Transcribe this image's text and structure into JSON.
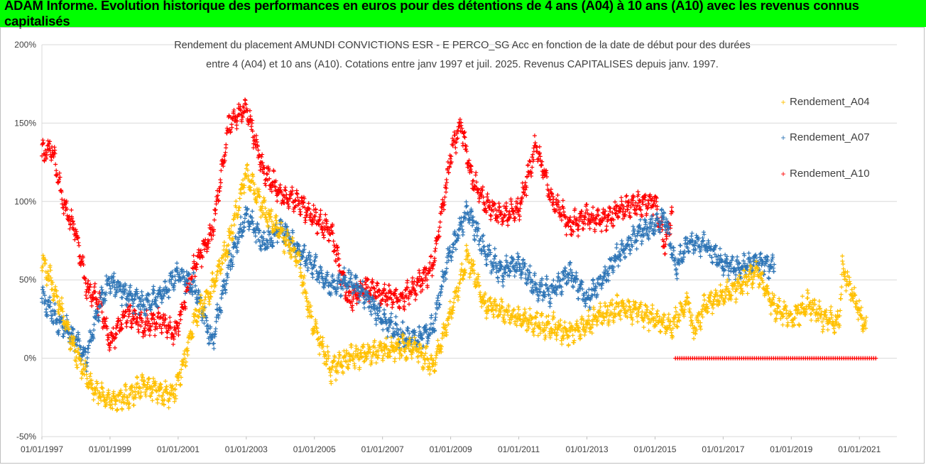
{
  "banner": {
    "title": "ADAM Informe. Evolution historique des performances en euros pour des détentions de 4 ans (A04) à 10 ans (A10) avec les revenus connus capitalisés"
  },
  "chart_data": {
    "type": "scatter",
    "title_lines": [
      "Rendement du placement AMUNDI CONVICTIONS ESR - E PERCO_SG Acc en fonction de la date de début pour des durées",
      "entre 4 (A04) et 10 ans (A10). Cotations entre janv 1997 et juil. 2025. Revenus CAPITALISES depuis janv. 1997."
    ],
    "xlabel": "",
    "ylabel": "",
    "y_ticks": [
      "200%",
      "150%",
      "100%",
      "50%",
      "0%",
      "-50%"
    ],
    "y_tick_values": [
      200,
      150,
      100,
      50,
      0,
      -50
    ],
    "ylim": [
      -50,
      200
    ],
    "x_ticks": [
      "01/01/1997",
      "01/01/1999",
      "01/01/2001",
      "01/01/2003",
      "01/01/2005",
      "01/01/2007",
      "01/01/2009",
      "01/01/2011",
      "01/01/2013",
      "01/01/2015",
      "01/01/2017",
      "01/01/2019",
      "01/01/2021"
    ],
    "x_tick_years": [
      1997,
      1999,
      2001,
      2003,
      2005,
      2007,
      2009,
      2011,
      2013,
      2015,
      2017,
      2019,
      2021
    ],
    "xlim": [
      1997.0,
      2021.5
    ],
    "grid": "horizontal",
    "legend_position": "right",
    "series": [
      {
        "name": "Rendement_A04",
        "color": "#ffc000",
        "x": [
          1997.0,
          1997.5,
          1998.0,
          1998.5,
          1999.0,
          1999.5,
          2000.0,
          2000.5,
          2000.9,
          2001.5,
          2002.0,
          2002.5,
          2003.0,
          2003.5,
          2004.0,
          2004.5,
          2004.9,
          2005.5,
          2006.0,
          2006.5,
          2007.0,
          2007.5,
          2008.0,
          2008.5,
          2008.9,
          2009.5,
          2010.0,
          2010.5,
          2011.0,
          2011.5,
          2012.0,
          2012.5,
          2013.0,
          2013.5,
          2014.0,
          2014.5,
          2015.0,
          2015.5,
          2016.0,
          2016.1,
          2016.5,
          2017.0,
          2017.5,
          2018.0,
          2018.5,
          2019.0,
          2019.5,
          2020.0,
          2020.4,
          2020.5,
          2021.0,
          2021.2
        ],
        "y": [
          63,
          35,
          3,
          -20,
          -28,
          -25,
          -17,
          -22,
          -22,
          25,
          45,
          75,
          118,
          95,
          80,
          65,
          25,
          -7,
          0,
          3,
          5,
          7,
          5,
          -5,
          22,
          65,
          35,
          30,
          25,
          22,
          20,
          15,
          22,
          28,
          32,
          30,
          25,
          20,
          38,
          15,
          35,
          40,
          47,
          55,
          33,
          25,
          35,
          25,
          22,
          58,
          30,
          17
        ]
      },
      {
        "name": "Rendement_A07",
        "color": "#2e75b6",
        "x": [
          1997.0,
          1997.5,
          1998.0,
          1998.3,
          1998.7,
          1999.0,
          1999.5,
          2000.0,
          2000.5,
          2001.0,
          2001.5,
          2002.0,
          2002.5,
          2003.0,
          2003.5,
          2004.0,
          2004.5,
          2005.0,
          2005.5,
          2006.0,
          2006.5,
          2007.0,
          2007.5,
          2008.0,
          2008.5,
          2008.9,
          2009.5,
          2010.0,
          2010.5,
          2011.0,
          2011.5,
          2012.0,
          2012.5,
          2013.0,
          2013.5,
          2014.0,
          2014.5,
          2015.0,
          2015.3,
          2015.6,
          2016.0,
          2016.5,
          2017.0,
          2017.5,
          2018.0,
          2018.5
        ],
        "y": [
          40,
          22,
          12,
          0,
          35,
          50,
          40,
          35,
          40,
          55,
          45,
          10,
          60,
          92,
          72,
          83,
          70,
          58,
          45,
          50,
          40,
          25,
          15,
          12,
          20,
          62,
          95,
          68,
          55,
          60,
          45,
          42,
          55,
          38,
          52,
          68,
          80,
          85,
          90,
          58,
          75,
          72,
          60,
          57,
          62,
          57
        ]
      },
      {
        "name": "Rendement_A10",
        "color": "#ff0000",
        "x": [
          1997.0,
          1997.3,
          1997.6,
          1998.0,
          1998.3,
          1998.7,
          1999.0,
          1999.5,
          2000.0,
          2000.5,
          2000.9,
          2001.5,
          2002.0,
          2002.5,
          2003.0,
          2003.5,
          2004.0,
          2004.5,
          2005.0,
          2005.5,
          2006.0,
          2006.5,
          2007.0,
          2007.5,
          2008.0,
          2008.5,
          2009.0,
          2009.3,
          2009.6,
          2010.0,
          2010.5,
          2011.0,
          2011.5,
          2012.0,
          2012.5,
          2013.0,
          2013.5,
          2014.0,
          2014.5,
          2015.0,
          2015.3,
          2015.5
        ],
        "y": [
          130,
          135,
          100,
          80,
          45,
          35,
          10,
          30,
          20,
          25,
          15,
          60,
          80,
          150,
          160,
          120,
          105,
          100,
          90,
          80,
          37,
          45,
          40,
          38,
          45,
          60,
          130,
          150,
          115,
          100,
          90,
          95,
          135,
          100,
          85,
          90,
          88,
          95,
          98,
          100,
          70,
          95
        ]
      },
      {
        "name": "",
        "color": "#ff0000",
        "x_range": [
          2015.6,
          2021.5
        ],
        "y": 0
      }
    ]
  }
}
